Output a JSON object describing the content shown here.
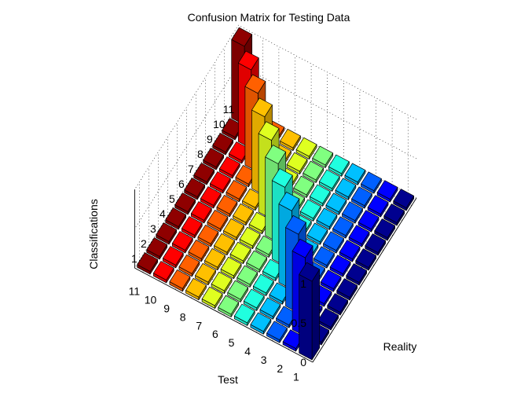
{
  "chart_data": {
    "type": "bar3",
    "title": "Confusion Matrix for Testing Data",
    "xlabel": "Test",
    "ylabel": "Reality",
    "zlabel": "Classifications",
    "x_ticks": [
      "1",
      "2",
      "3",
      "4",
      "5",
      "6",
      "7",
      "8",
      "9",
      "10",
      "11"
    ],
    "y_ticks": [
      "1",
      "2",
      "3",
      "4",
      "5",
      "6",
      "7",
      "8",
      "9",
      "10",
      "11"
    ],
    "z_ticks": [
      "0",
      "0.5",
      "1"
    ],
    "zlim": [
      0,
      1
    ],
    "grid": true,
    "colormap": "jet",
    "colors": [
      "#00008f",
      "#0000ff",
      "#0060ff",
      "#00c0ff",
      "#20ffdf",
      "#80ff80",
      "#dfff20",
      "#ffc000",
      "#ff6000",
      "#ff0000",
      "#8f0000"
    ],
    "matrix": [
      [
        1,
        0,
        0,
        0,
        0,
        0,
        0,
        0,
        0,
        0,
        0
      ],
      [
        0,
        1,
        0,
        0,
        0,
        0,
        0,
        0,
        0,
        0,
        0
      ],
      [
        0,
        0,
        1,
        0,
        0,
        0,
        0,
        0,
        0,
        0,
        0
      ],
      [
        0,
        0,
        0,
        1,
        0,
        0,
        0,
        0,
        0,
        0,
        0
      ],
      [
        0,
        0,
        0,
        0,
        1,
        0,
        0,
        0,
        0,
        0,
        0
      ],
      [
        0,
        0,
        0,
        0,
        0,
        1,
        0,
        0,
        0,
        0,
        0
      ],
      [
        0,
        0,
        0,
        0,
        0,
        0,
        1,
        0,
        0,
        0,
        0
      ],
      [
        0,
        0,
        0,
        0,
        0,
        0,
        0,
        1,
        0,
        0,
        0
      ],
      [
        0,
        0,
        0,
        0,
        0,
        0,
        0,
        0,
        1,
        0,
        0
      ],
      [
        0,
        0,
        0,
        0,
        0,
        0,
        0,
        0,
        0,
        1,
        0
      ],
      [
        0,
        0,
        0,
        0,
        0,
        0,
        0,
        0,
        0,
        0,
        1
      ]
    ],
    "note": "matrix[i][j]: row i = Test index (1..11), column j = Reality index (1..11); value = classification rate"
  }
}
